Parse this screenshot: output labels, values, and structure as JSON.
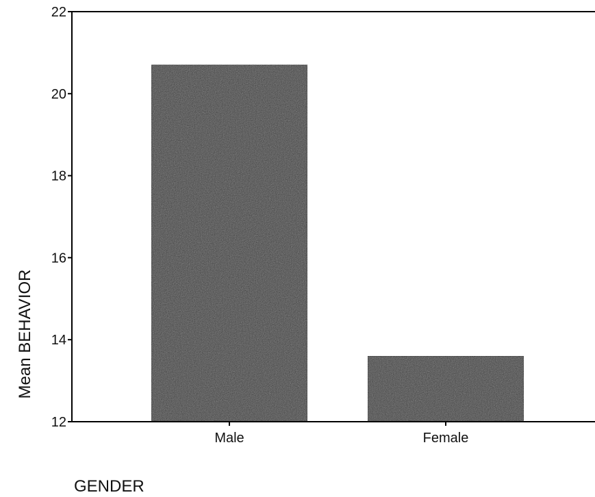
{
  "chart_data": {
    "type": "bar",
    "categories": [
      "Male",
      "Female"
    ],
    "series": [
      {
        "values": [
          20.7,
          13.6
        ]
      }
    ],
    "xlabel": "GENDER",
    "ylabel": "Mean BEHAVIOR",
    "ylim": [
      12,
      22
    ],
    "yticks": [
      "12",
      "14",
      "16",
      "18",
      "20",
      "22"
    ],
    "grid": false,
    "legend": "none",
    "bar_color": "#3a3a3a",
    "bar_edge_color": "#000000"
  }
}
